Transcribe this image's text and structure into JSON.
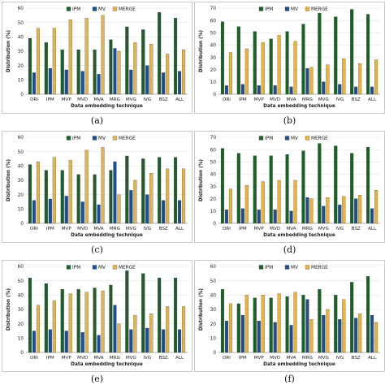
{
  "colors": {
    "IPM": "#1e5e2a",
    "MV": "#1f4e8c",
    "MERGE": "#e3b448",
    "frame": "#c8c8c8",
    "grid": "#e4e4e4",
    "axis": "#9a9a9a"
  },
  "chart_data": [
    {
      "panel": "a",
      "caption": "(a)",
      "type": "bar",
      "xlabel": "Data embedding technique",
      "ylabel": "Distribution (%)",
      "ylim": [
        0,
        60
      ],
      "yticks": [
        0,
        10,
        20,
        30,
        40,
        50,
        60
      ],
      "grid": "horizontal",
      "legend": "top",
      "categories": [
        "ORI",
        "IPM",
        "MVP",
        "MVD",
        "MVA",
        "MRG",
        "MVG",
        "IVG",
        "BSZ",
        "ALL"
      ],
      "series": [
        {
          "name": "IPM",
          "values": [
            39,
            36,
            31,
            31,
            31,
            38,
            47,
            45,
            57,
            53
          ]
        },
        {
          "name": "MV",
          "values": [
            15,
            18,
            17,
            16,
            14,
            32,
            17,
            20,
            15,
            16
          ]
        },
        {
          "name": "MERGE",
          "values": [
            46,
            46,
            52,
            53,
            55,
            30,
            36,
            35,
            28,
            31
          ]
        }
      ]
    },
    {
      "panel": "b",
      "caption": "(b)",
      "type": "bar",
      "xlabel": "Data embedding technique",
      "ylabel": "Distribution (%)",
      "ylim": [
        0,
        70
      ],
      "yticks": [
        0,
        10,
        20,
        30,
        40,
        50,
        60,
        70
      ],
      "grid": "horizontal",
      "legend": "top",
      "categories": [
        "ORI",
        "IPM",
        "MVP",
        "MVD",
        "MVA",
        "MRG",
        "MVG",
        "IVG",
        "BSZ",
        "ALL"
      ],
      "series": [
        {
          "name": "IPM",
          "values": [
            59,
            55,
            51,
            45,
            51,
            57,
            66,
            63,
            69,
            65
          ]
        },
        {
          "name": "MV",
          "values": [
            7,
            8,
            7,
            7,
            6,
            21,
            10,
            8,
            6,
            6
          ]
        },
        {
          "name": "MERGE",
          "values": [
            34,
            37,
            42,
            48,
            43,
            22,
            24,
            29,
            25,
            28
          ]
        }
      ]
    },
    {
      "panel": "c",
      "caption": "(c)",
      "type": "bar",
      "xlabel": "Data embedding technique",
      "ylabel": "Distribution (%)",
      "ylim": [
        0,
        60
      ],
      "yticks": [
        0,
        10,
        20,
        30,
        40,
        50,
        60
      ],
      "grid": "horizontal",
      "legend": "top",
      "categories": [
        "ORI",
        "IPM",
        "MVP",
        "MVD",
        "MVA",
        "MRG",
        "MVG",
        "IVG",
        "BSZ",
        "ALL"
      ],
      "series": [
        {
          "name": "IPM",
          "values": [
            41,
            37,
            37,
            34,
            34,
            37,
            47,
            45,
            46,
            46
          ]
        },
        {
          "name": "MV",
          "values": [
            16,
            17,
            19,
            15,
            13,
            43,
            23,
            20,
            16,
            16
          ]
        },
        {
          "name": "MERGE",
          "values": [
            43,
            46,
            44,
            51,
            53,
            20,
            30,
            35,
            38,
            38
          ]
        }
      ]
    },
    {
      "panel": "d",
      "caption": "(d)",
      "type": "bar",
      "xlabel": "Data embedding technique",
      "ylabel": "Distribution (%)",
      "ylim": [
        0,
        70
      ],
      "yticks": [
        0,
        10,
        20,
        30,
        40,
        50,
        60,
        70
      ],
      "grid": "horizontal",
      "legend": "top",
      "categories": [
        "ORI",
        "IPM",
        "MVP",
        "MVD",
        "MVA",
        "MRG",
        "MVG",
        "IVG",
        "BSZ",
        "ALL"
      ],
      "series": [
        {
          "name": "IPM",
          "values": [
            61,
            57,
            55,
            55,
            56,
            59,
            65,
            63,
            57,
            62
          ]
        },
        {
          "name": "MV",
          "values": [
            11,
            12,
            11,
            11,
            10,
            21,
            14,
            15,
            20,
            12
          ]
        },
        {
          "name": "MERGE",
          "values": [
            28,
            31,
            34,
            35,
            35,
            20,
            21,
            22,
            23,
            27
          ]
        }
      ]
    },
    {
      "panel": "e",
      "caption": "(e)",
      "type": "bar",
      "xlabel": "Data embedding technique",
      "ylabel": "Distribution (%)",
      "ylim": [
        0,
        60
      ],
      "yticks": [
        0,
        10,
        20,
        30,
        40,
        50,
        60
      ],
      "grid": "horizontal",
      "legend": "top",
      "categories": [
        "ORI",
        "IPM",
        "MVP",
        "MVD",
        "MVA",
        "MRG",
        "MVG",
        "IVG",
        "BSZ",
        "ALL"
      ],
      "series": [
        {
          "name": "IPM",
          "values": [
            52,
            48,
            44,
            44,
            45,
            47,
            57,
            55,
            52,
            52
          ]
        },
        {
          "name": "MV",
          "values": [
            15,
            16,
            15,
            14,
            12,
            33,
            16,
            17,
            16,
            16
          ]
        },
        {
          "name": "MERGE",
          "values": [
            33,
            36,
            41,
            42,
            43,
            20,
            26,
            27,
            32,
            32
          ]
        }
      ]
    },
    {
      "panel": "f",
      "caption": "(f)",
      "type": "bar",
      "xlabel": "Data embedding technique",
      "ylabel": "Distribution (%)",
      "ylim": [
        0,
        60
      ],
      "yticks": [
        0,
        10,
        20,
        30,
        40,
        50,
        60
      ],
      "grid": "horizontal",
      "legend": "top",
      "categories": [
        "ORI",
        "IPM",
        "MVP",
        "MVD",
        "MVA",
        "MRG",
        "MVG",
        "IVG",
        "BSZ",
        "ALL"
      ],
      "series": [
        {
          "name": "IPM",
          "values": [
            44,
            34,
            38,
            38,
            39,
            40,
            44,
            40,
            49,
            53
          ]
        },
        {
          "name": "MV",
          "values": [
            22,
            26,
            22,
            21,
            19,
            37,
            26,
            23,
            24,
            26
          ]
        },
        {
          "name": "MERGE",
          "values": [
            34,
            40,
            40,
            41,
            42,
            23,
            30,
            37,
            27,
            21
          ]
        }
      ]
    }
  ]
}
